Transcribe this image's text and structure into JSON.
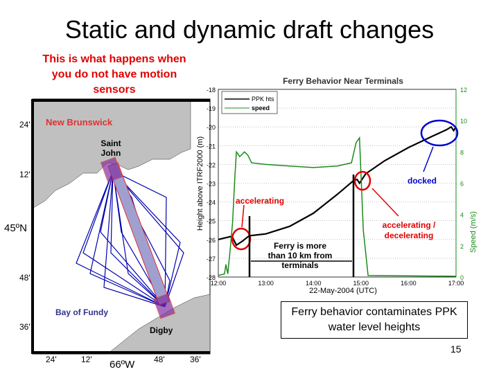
{
  "slide": {
    "title": "Static and dynamic draft changes",
    "subtitle": "This is what happens when you do not have motion sensors",
    "note": "Ferry behavior contaminates PPK water level heights",
    "page_number": "15"
  },
  "map": {
    "labels": {
      "new_brunswick": "New Brunswick",
      "saint_john": "Saint John",
      "bay_of_fundy": "Bay of Fundy",
      "digby": "Digby"
    },
    "lat_ticks": [
      "24'",
      "12'",
      "45ºN",
      "48'",
      "36'"
    ],
    "lon_ticks": [
      "24'",
      "12'",
      "66ºW",
      "48'",
      "36'"
    ],
    "colors": {
      "land": "#c0c0c0",
      "tracks": "#0000b0",
      "terminal": "#e03030"
    }
  },
  "chart_data": {
    "type": "line",
    "title": "Ferry Behavior Near Terminals",
    "xlabel": "22-May-2004 (UTC)",
    "ylabel": "Height above ITRF2000 (m)",
    "y2label": "Speed (m/s)",
    "xlim": [
      12,
      17
    ],
    "ylim": [
      -28,
      -18
    ],
    "y2lim": [
      0,
      12
    ],
    "x_tick_labels": [
      "12:00",
      "13:00",
      "14:00",
      "15:00",
      "16:00",
      "17:00"
    ],
    "y_tick_labels": [
      "-18",
      "-19",
      "-20",
      "-21",
      "-22",
      "-23",
      "-24",
      "-25",
      "-26",
      "-27",
      "-28"
    ],
    "y2_tick_labels": [
      "12",
      "10",
      "8",
      "6",
      "4",
      "2",
      "0"
    ],
    "grid": true,
    "legend": {
      "placement": "top-left",
      "entries": [
        "PPK hts",
        "speed"
      ]
    },
    "series": [
      {
        "name": "PPK hts",
        "color": "#000000",
        "axis": "left",
        "x": [
          12.0,
          12.25,
          12.3,
          12.38,
          12.5,
          12.65,
          13.0,
          13.5,
          14.0,
          14.5,
          14.85,
          14.92,
          14.97,
          15.1,
          15.5,
          16.0,
          16.5,
          16.8,
          16.9,
          16.95,
          17.0
        ],
        "y": [
          -26.0,
          -25.85,
          -25.9,
          -26.3,
          -26.1,
          -25.8,
          -25.7,
          -25.3,
          -24.6,
          -23.6,
          -22.85,
          -22.8,
          -23.0,
          -22.5,
          -21.8,
          -21.1,
          -20.5,
          -20.15,
          -20.0,
          -20.2,
          -20.0
        ]
      },
      {
        "name": "speed",
        "color": "#1a8a1a",
        "axis": "right",
        "x": [
          12.0,
          12.13,
          12.16,
          12.2,
          12.25,
          12.3,
          12.35,
          12.38,
          12.45,
          12.55,
          12.62,
          12.7,
          13.0,
          13.5,
          14.0,
          14.5,
          14.8,
          14.9,
          14.97,
          15.05,
          15.15,
          17.0
        ],
        "y": [
          0.1,
          0.2,
          0.8,
          0.2,
          1.8,
          3.5,
          6.5,
          8.0,
          7.7,
          8.0,
          7.8,
          7.3,
          7.2,
          7.1,
          7.0,
          7.1,
          7.3,
          8.6,
          8.9,
          3.0,
          0.1,
          0.05
        ]
      }
    ],
    "annotations": [
      "accelerating",
      "accelerating / decelerating",
      "docked",
      "Ferry is more than 10 km from terminals"
    ]
  }
}
